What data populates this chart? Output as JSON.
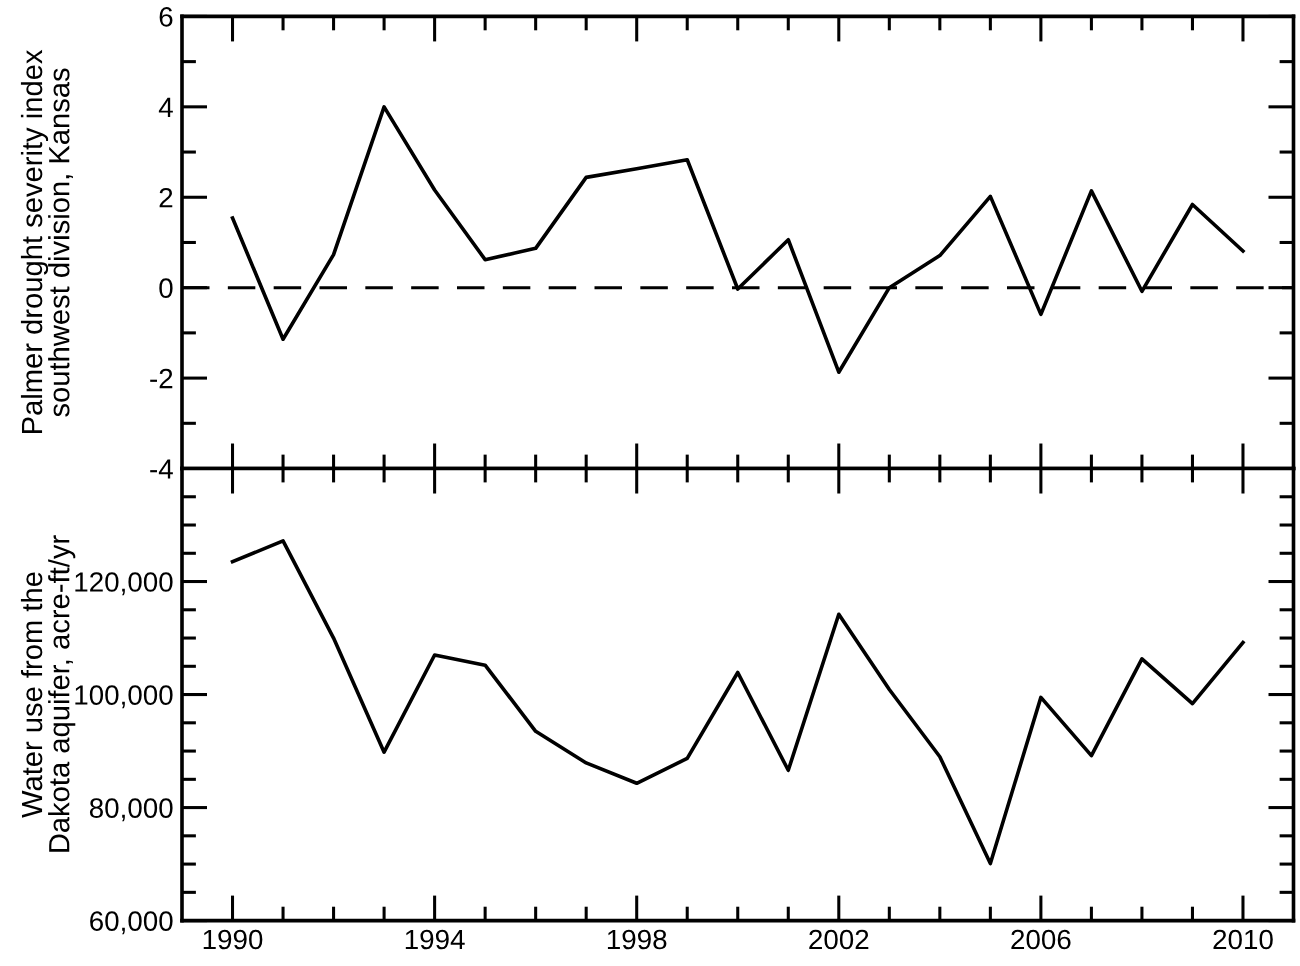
{
  "chart_data": [
    {
      "type": "line",
      "ylabel": "Palmer drought severity index\nsouthwest division, Kansas",
      "x": [
        1990,
        1991,
        1992,
        1993,
        1994,
        1995,
        1996,
        1997,
        1998,
        1999,
        2000,
        2001,
        2002,
        2003,
        2004,
        2005,
        2006,
        2007,
        2008,
        2009,
        2010
      ],
      "series": [
        {
          "color": "#000000",
          "values": [
            1.54,
            -1.14,
            0.73,
            4.0,
            2.16,
            0.62,
            0.87,
            2.44,
            2.63,
            2.83,
            -0.03,
            1.06,
            -1.87,
            0.0,
            0.71,
            2.02,
            -0.59,
            2.14,
            -0.08,
            1.84,
            0.81
          ]
        }
      ],
      "xlim": [
        1989,
        2011
      ],
      "xticks": [
        1990,
        {
          "value": 1991,
          "label": null
        },
        {
          "value": 1992,
          "label": null
        },
        {
          "value": 1993,
          "label": null
        },
        1994,
        {
          "value": 1995,
          "label": null
        },
        {
          "value": 1996,
          "label": null
        },
        {
          "value": 1997,
          "label": null
        },
        1998,
        {
          "value": 1999,
          "label": null
        },
        {
          "value": 2000,
          "label": null
        },
        {
          "value": 2001,
          "label": null
        },
        2002,
        {
          "value": 2003,
          "label": null
        },
        {
          "value": 2004,
          "label": null
        },
        {
          "value": 2005,
          "label": null
        },
        2006,
        {
          "value": 2007,
          "label": null
        },
        {
          "value": 2008,
          "label": null
        },
        {
          "value": 2009,
          "label": null
        },
        2010
      ],
      "ylim": [
        -4,
        6
      ],
      "yticks": [
        -4,
        {
          "value": -3,
          "label": null
        },
        -2,
        {
          "value": -1,
          "label": null
        },
        0,
        {
          "value": 1,
          "label": null
        },
        2,
        {
          "value": 3,
          "label": null
        },
        4,
        {
          "value": 5,
          "label": null
        },
        6
      ],
      "ref_lines": [
        {
          "axis": "y",
          "value": 0,
          "color": "#000000",
          "line_style": "dashed"
        }
      ],
      "tick_labels": "y",
      "grid": false,
      "legend": false,
      "marker": "none",
      "line_style": "solid"
    },
    {
      "type": "line",
      "ylabel": "Water use from the\nDakota aquifer, acre-ft/yr",
      "x": [
        1990,
        1991,
        1992,
        1993,
        1994,
        1995,
        1996,
        1997,
        1998,
        1999,
        2000,
        2001,
        2002,
        2003,
        2004,
        2005,
        2006,
        2007,
        2008,
        2009,
        2010
      ],
      "series": [
        {
          "color": "#000000",
          "values": [
            123500,
            127200,
            110000,
            89800,
            107000,
            105200,
            93500,
            87900,
            84300,
            88700,
            103900,
            86600,
            114200,
            100900,
            89000,
            70100,
            99500,
            89200,
            106300,
            98400,
            109200
          ]
        }
      ],
      "xlim": [
        1989,
        2011
      ],
      "xticks": [
        1990,
        {
          "value": 1991,
          "label": null
        },
        {
          "value": 1992,
          "label": null
        },
        {
          "value": 1993,
          "label": null
        },
        1994,
        {
          "value": 1995,
          "label": null
        },
        {
          "value": 1996,
          "label": null
        },
        {
          "value": 1997,
          "label": null
        },
        1998,
        {
          "value": 1999,
          "label": null
        },
        {
          "value": 2000,
          "label": null
        },
        {
          "value": 2001,
          "label": null
        },
        2002,
        {
          "value": 2003,
          "label": null
        },
        {
          "value": 2004,
          "label": null
        },
        {
          "value": 2005,
          "label": null
        },
        2006,
        {
          "value": 2007,
          "label": null
        },
        {
          "value": 2008,
          "label": null
        },
        {
          "value": 2009,
          "label": null
        },
        2010
      ],
      "ylim": [
        60000,
        140000
      ],
      "yticks": [
        {
          "value": 60000,
          "label": "60,000"
        },
        {
          "value": 65000,
          "label": null
        },
        {
          "value": 70000,
          "label": null
        },
        {
          "value": 75000,
          "label": null
        },
        {
          "value": 80000,
          "label": "80,000"
        },
        {
          "value": 85000,
          "label": null
        },
        {
          "value": 90000,
          "label": null
        },
        {
          "value": 95000,
          "label": null
        },
        {
          "value": 100000,
          "label": "100,000"
        },
        {
          "value": 105000,
          "label": null
        },
        {
          "value": 110000,
          "label": null
        },
        {
          "value": 115000,
          "label": null
        },
        {
          "value": 120000,
          "label": "120,000"
        },
        {
          "value": 125000,
          "label": null
        },
        {
          "value": 130000,
          "label": null
        },
        {
          "value": 135000,
          "label": null
        }
      ],
      "grid": false,
      "legend": false,
      "marker": "none",
      "line_style": "solid"
    }
  ]
}
